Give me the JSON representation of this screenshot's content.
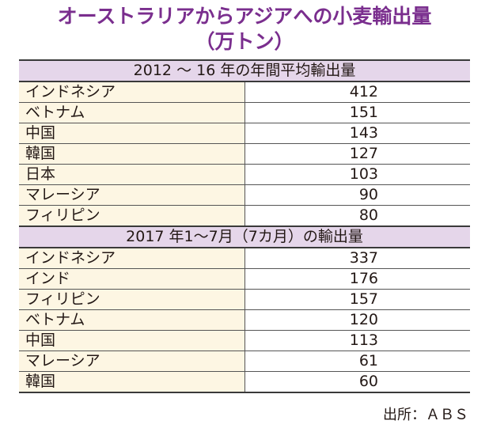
{
  "chart_data": {
    "type": "table",
    "title_line1": "オーストラリアからアジアへの小麦輸出量",
    "title_line2": "（万トン）",
    "sections": [
      {
        "header": "2012 ～ 16 年の年間平均輸出量",
        "rows": [
          {
            "country": "インドネシア",
            "value": "412"
          },
          {
            "country": "ベトナム",
            "value": "151"
          },
          {
            "country": "中国",
            "value": "143"
          },
          {
            "country": "韓国",
            "value": "127"
          },
          {
            "country": "日本",
            "value": "103"
          },
          {
            "country": "マレーシア",
            "value": "90"
          },
          {
            "country": "フィリピン",
            "value": "80"
          }
        ]
      },
      {
        "header": "2017 年1～7月（7カ月）の輸出量",
        "rows": [
          {
            "country": "インドネシア",
            "value": "337"
          },
          {
            "country": "インド",
            "value": "176"
          },
          {
            "country": "フィリピン",
            "value": "157"
          },
          {
            "country": "ベトナム",
            "value": "120"
          },
          {
            "country": "中国",
            "value": "113"
          },
          {
            "country": "マレーシア",
            "value": "61"
          },
          {
            "country": "韓国",
            "value": "60"
          }
        ]
      }
    ],
    "source": "出所：ＡＢＳ"
  },
  "colors": {
    "title": "#7a2e8e",
    "section_header_bg": "#e5d6ea",
    "country_cell_bg": "#fdf6e3"
  }
}
